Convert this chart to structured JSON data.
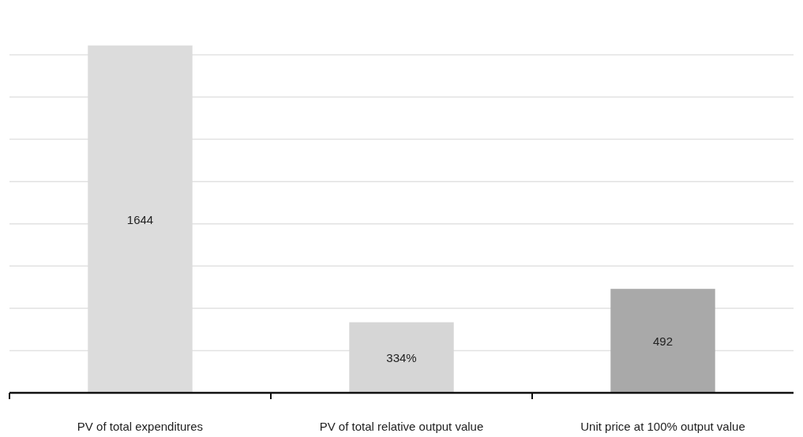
{
  "chart_data": {
    "type": "bar",
    "categories": [
      "PV of total expenditures",
      "PV of total relative output value",
      "Unit price at 100% output value"
    ],
    "values": [
      1644,
      334,
      492
    ],
    "colors": [
      "#dcdcdc",
      "#d6d6d6",
      "#a9a9a9"
    ],
    "value_labels": [
      "1644",
      "334%",
      "492"
    ],
    "grid": "y"
  }
}
